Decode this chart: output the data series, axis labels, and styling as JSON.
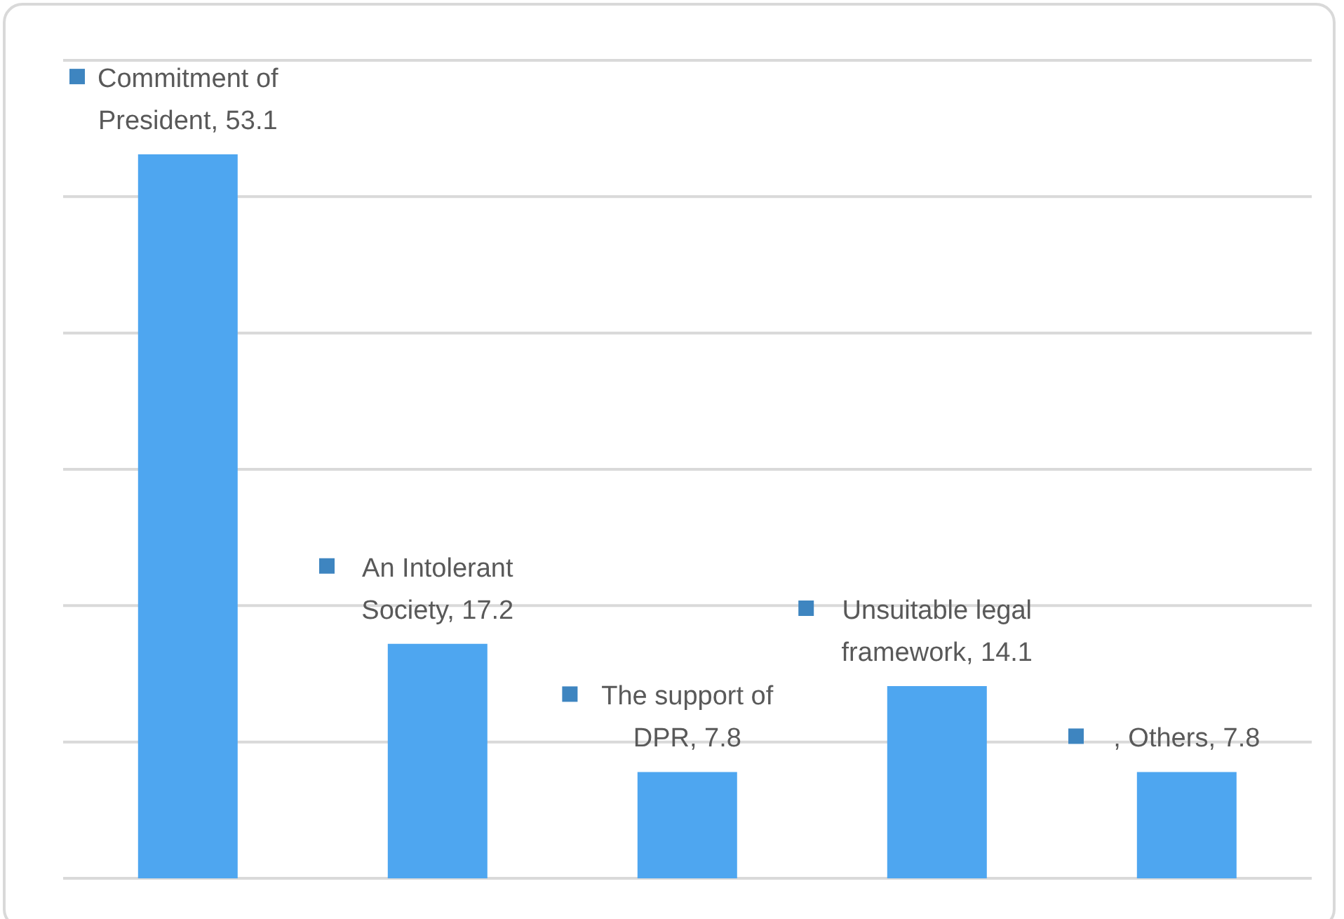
{
  "chart_data": {
    "type": "bar",
    "categories": [
      null,
      null,
      null,
      null,
      null
    ],
    "values": [
      53.1,
      17.2,
      7.8,
      14.1,
      7.8
    ],
    "color": "#4ea6f0",
    "value_labels": [
      "Commitment of President, 53.1",
      "An Intolerant Society, 17.2",
      "The support of DPR, 7.8",
      "Unsuitable legal framework, 14.1",
      ", Others, 7.8"
    ],
    "ylim": [
      0,
      60
    ],
    "yticks": [
      0,
      10,
      20,
      30,
      40,
      50,
      60
    ],
    "grid": "y",
    "tick_labels": false
  }
}
